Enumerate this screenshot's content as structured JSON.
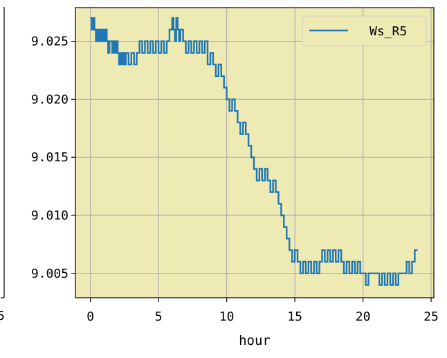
{
  "chart_data": {
    "type": "line",
    "xlabel": "hour",
    "ylabel": "",
    "xlim": [
      -1.1,
      25.2
    ],
    "ylim": [
      9.0029,
      9.0279
    ],
    "x_ticks": [
      0,
      5,
      10,
      15,
      20,
      25
    ],
    "y_ticks": [
      9.005,
      9.01,
      9.015,
      9.02,
      9.025
    ],
    "x_tick_labels": [
      "0",
      "5",
      "10",
      "15",
      "20",
      "25"
    ],
    "y_tick_labels": [
      "9.005",
      "9.010",
      "9.015",
      "9.020",
      "9.025"
    ],
    "left_panel_tick_label": "5",
    "grid": true,
    "legend_position": "top-right",
    "colors": {
      "background": "#eeeab4",
      "line": "#1f77b4",
      "grid": "#b0b0b0"
    },
    "series": [
      {
        "name": "Ws_R5",
        "x": [
          0,
          0.1,
          0.2,
          0.3,
          0.4,
          0.5,
          0.6,
          0.7,
          0.8,
          0.9,
          1.0,
          1.1,
          1.2,
          1.3,
          1.4,
          1.5,
          1.6,
          1.7,
          1.8,
          1.9,
          2.0,
          2.1,
          2.2,
          2.3,
          2.4,
          2.5,
          2.6,
          2.8,
          3.0,
          3.2,
          3.4,
          3.6,
          3.8,
          4.0,
          4.2,
          4.4,
          4.6,
          4.8,
          5.0,
          5.2,
          5.4,
          5.6,
          5.8,
          6.0,
          6.1,
          6.2,
          6.3,
          6.4,
          6.5,
          6.6,
          6.8,
          7.0,
          7.2,
          7.4,
          7.6,
          7.8,
          8.0,
          8.2,
          8.4,
          8.6,
          8.8,
          9.0,
          9.2,
          9.4,
          9.6,
          9.8,
          10.0,
          10.2,
          10.4,
          10.6,
          10.8,
          11.0,
          11.2,
          11.4,
          11.6,
          11.8,
          12.0,
          12.2,
          12.4,
          12.6,
          12.8,
          13.0,
          13.2,
          13.4,
          13.6,
          13.8,
          14.0,
          14.2,
          14.4,
          14.6,
          14.8,
          15.0,
          15.2,
          15.4,
          15.6,
          15.8,
          16.0,
          16.2,
          16.4,
          16.6,
          16.8,
          17.0,
          17.2,
          17.4,
          17.6,
          17.8,
          18.0,
          18.2,
          18.4,
          18.6,
          18.8,
          19.0,
          19.2,
          19.4,
          19.6,
          19.8,
          20.0,
          20.2,
          20.4,
          20.6,
          20.8,
          21.0,
          21.2,
          21.4,
          21.6,
          21.8,
          22.0,
          22.2,
          22.4,
          22.6,
          22.8,
          23.0,
          23.2,
          23.4,
          23.6,
          23.8,
          24.0
        ],
        "values": [
          9.027,
          9.026,
          9.027,
          9.026,
          9.025,
          9.026,
          9.025,
          9.026,
          9.025,
          9.026,
          9.025,
          9.026,
          9.025,
          9.024,
          9.025,
          9.025,
          9.024,
          9.025,
          9.024,
          9.025,
          9.024,
          9.023,
          9.024,
          9.023,
          9.024,
          9.023,
          9.024,
          9.023,
          9.024,
          9.023,
          9.024,
          9.025,
          9.024,
          9.025,
          9.024,
          9.025,
          9.024,
          9.025,
          9.024,
          9.025,
          9.024,
          9.025,
          9.026,
          9.027,
          9.026,
          9.025,
          9.027,
          9.026,
          9.025,
          9.026,
          9.025,
          9.024,
          9.025,
          9.024,
          9.025,
          9.024,
          9.025,
          9.024,
          9.025,
          9.023,
          9.024,
          9.023,
          9.022,
          9.023,
          9.022,
          9.021,
          9.02,
          9.019,
          9.02,
          9.019,
          9.018,
          9.017,
          9.018,
          9.017,
          9.016,
          9.015,
          9.014,
          9.013,
          9.014,
          9.013,
          9.014,
          9.013,
          9.012,
          9.013,
          9.012,
          9.011,
          9.01,
          9.009,
          9.008,
          9.007,
          9.006,
          9.007,
          9.006,
          9.005,
          9.006,
          9.005,
          9.006,
          9.005,
          9.006,
          9.005,
          9.006,
          9.007,
          9.006,
          9.007,
          9.006,
          9.007,
          9.006,
          9.007,
          9.006,
          9.005,
          9.006,
          9.005,
          9.006,
          9.005,
          9.006,
          9.005,
          9.005,
          9.004,
          9.005,
          9.005,
          9.005,
          9.005,
          9.004,
          9.005,
          9.004,
          9.005,
          9.004,
          9.005,
          9.004,
          9.005,
          9.005,
          9.005,
          9.006,
          9.005,
          9.006,
          9.007,
          9.007
        ]
      }
    ]
  }
}
